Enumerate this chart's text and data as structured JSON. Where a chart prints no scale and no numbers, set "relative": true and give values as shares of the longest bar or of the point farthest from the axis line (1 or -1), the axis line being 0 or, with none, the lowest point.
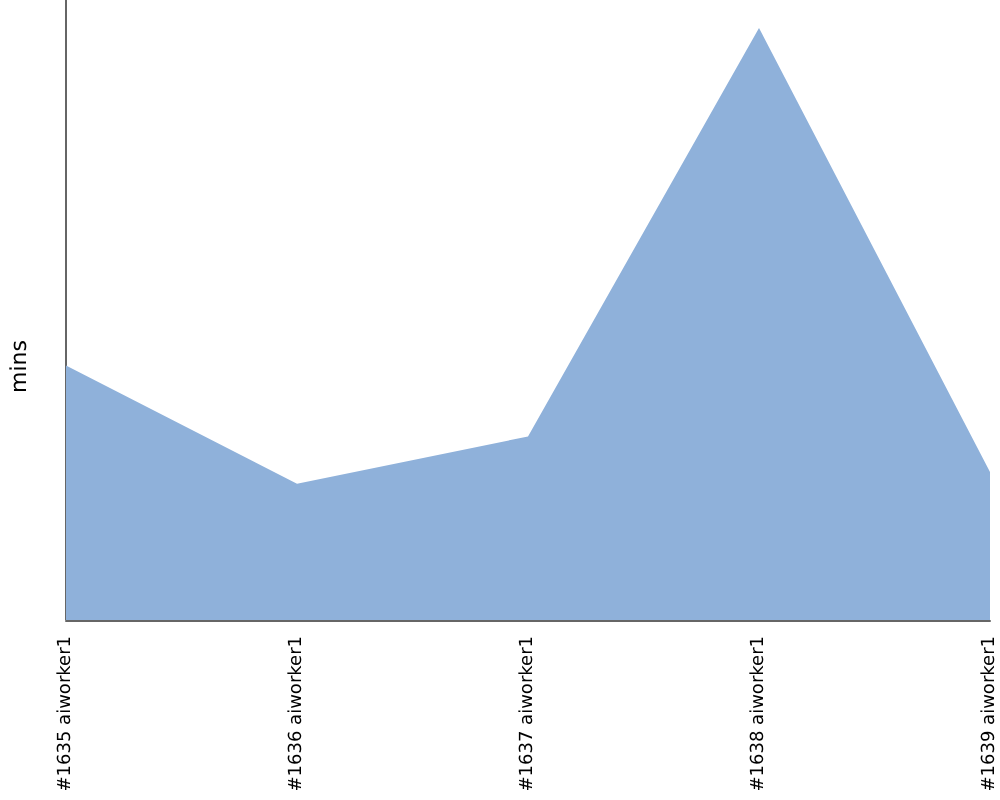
{
  "chart_data": {
    "type": "area",
    "ylabel": "mins",
    "relative": true,
    "categories": [
      "#1635 aiworker1",
      "#1636 aiworker1",
      "#1637 aiworker1",
      "#1638 aiworker1",
      "#1639 aiworker1"
    ],
    "series": [
      {
        "color": "#8fb1da",
        "values": [
          0.43,
          0.23,
          0.31,
          1,
          0.25
        ]
      }
    ]
  }
}
